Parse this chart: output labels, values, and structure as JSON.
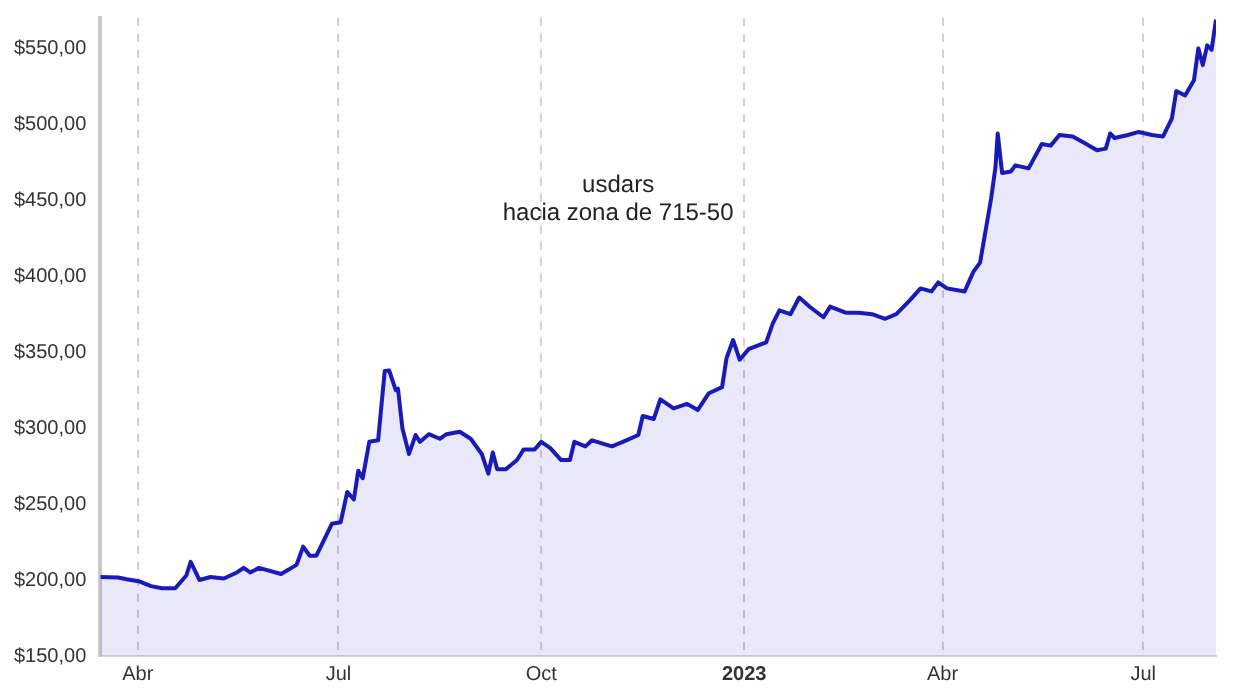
{
  "chart_data": {
    "type": "area",
    "annotations": [
      "usdars",
      "hacia zona de 715-50"
    ],
    "x": [
      "2022-03-15",
      "2022-03-23",
      "2022-03-27",
      "2022-04-02",
      "2022-04-07",
      "2022-04-12",
      "2022-04-18",
      "2022-04-23",
      "2022-04-25",
      "2022-04-29",
      "2022-05-04",
      "2022-05-10",
      "2022-05-16",
      "2022-05-19",
      "2022-05-22",
      "2022-05-26",
      "2022-06-05",
      "2022-06-12",
      "2022-06-15",
      "2022-06-18",
      "2022-06-21",
      "2022-06-24",
      "2022-06-28",
      "2022-07-02",
      "2022-07-05",
      "2022-07-08",
      "2022-07-10",
      "2022-07-12",
      "2022-07-15",
      "2022-07-19",
      "2022-07-22",
      "2022-07-24",
      "2022-07-27",
      "2022-07-28",
      "2022-07-30",
      "2022-08-02",
      "2022-08-05",
      "2022-08-07",
      "2022-08-11",
      "2022-08-16",
      "2022-08-19",
      "2022-08-25",
      "2022-08-30",
      "2022-09-04",
      "2022-09-07",
      "2022-09-09",
      "2022-09-11",
      "2022-09-15",
      "2022-09-20",
      "2022-09-23",
      "2022-09-28",
      "2022-10-01",
      "2022-10-05",
      "2022-10-10",
      "2022-10-14",
      "2022-10-16",
      "2022-10-21",
      "2022-10-24",
      "2022-11-02",
      "2022-11-07",
      "2022-11-14",
      "2022-11-16",
      "2022-11-21",
      "2022-11-24",
      "2022-11-30",
      "2022-12-06",
      "2022-12-11",
      "2022-12-16",
      "2022-12-22",
      "2022-12-24",
      "2022-12-27",
      "2022-12-30",
      "2023-01-03",
      "2023-01-11",
      "2023-01-14",
      "2023-01-17",
      "2023-01-22",
      "2023-01-26",
      "2023-01-31",
      "2023-02-06",
      "2023-02-09",
      "2023-02-16",
      "2023-02-22",
      "2023-02-28",
      "2023-03-06",
      "2023-03-11",
      "2023-03-17",
      "2023-03-22",
      "2023-03-27",
      "2023-03-30",
      "2023-04-03",
      "2023-04-11",
      "2023-04-15",
      "2023-04-18",
      "2023-04-23",
      "2023-04-25",
      "2023-04-26",
      "2023-04-28",
      "2023-05-02",
      "2023-05-04",
      "2023-05-10",
      "2023-05-16",
      "2023-05-20",
      "2023-05-24",
      "2023-05-30",
      "2023-06-04",
      "2023-06-10",
      "2023-06-14",
      "2023-06-16",
      "2023-06-18",
      "2023-06-24",
      "2023-06-29",
      "2023-07-05",
      "2023-07-10",
      "2023-07-14",
      "2023-07-16",
      "2023-07-20",
      "2023-07-24",
      "2023-07-26",
      "2023-07-28",
      "2023-07-30",
      "2023-08-01",
      "2023-08-03"
    ],
    "series": [
      {
        "color": "#1a1ab8",
        "values": [
          202,
          201.7,
          200.5,
          199,
          196,
          194.6,
          194.6,
          203,
          212,
          200,
          202,
          201,
          205,
          208,
          205,
          208,
          204,
          210,
          222,
          216,
          216,
          225,
          237,
          238,
          258,
          253,
          272,
          267,
          291,
          292,
          337.6,
          338,
          325,
          326,
          300,
          283,
          295.5,
          291,
          296,
          293,
          296,
          297.6,
          293,
          283,
          270,
          284,
          273,
          273,
          279,
          286,
          286,
          291,
          287,
          279,
          279,
          291,
          288,
          292,
          288,
          291,
          295.5,
          308,
          306,
          319,
          313,
          316,
          312,
          323,
          327,
          346,
          358,
          345,
          352,
          356.5,
          369,
          377.5,
          375,
          386,
          379.6,
          373,
          380,
          376,
          376,
          375,
          372,
          375,
          384,
          392,
          390,
          396,
          392,
          390,
          403,
          409,
          451,
          472,
          494,
          468,
          469,
          473,
          471,
          487,
          486,
          493,
          492,
          488,
          483,
          484,
          494,
          491,
          493,
          495,
          493,
          492,
          504,
          522,
          519,
          529,
          550,
          539,
          552,
          549,
          569
        ]
      }
    ],
    "xlim": [
      "2022-03-15",
      "2023-08-03"
    ],
    "xticks": [
      {
        "value": "2022-04-01",
        "label": "Abr"
      },
      {
        "value": "2022-07-01",
        "label": "Jul"
      },
      {
        "value": "2022-10-01",
        "label": "Oct"
      },
      {
        "value": "2023-01-01",
        "label": "2023"
      },
      {
        "value": "2023-04-01",
        "label": "Abr"
      },
      {
        "value": "2023-07-01",
        "label": "Jul"
      }
    ],
    "ylim": [
      150,
      570
    ],
    "yticks": [
      {
        "value": 150,
        "label": "$150,00"
      },
      {
        "value": 200,
        "label": "$200,00"
      },
      {
        "value": 250,
        "label": "$250,00"
      },
      {
        "value": 300,
        "label": "$300,00"
      },
      {
        "value": 350,
        "label": "$350,00"
      },
      {
        "value": 400,
        "label": "$400,00"
      },
      {
        "value": 450,
        "label": "$450,00"
      },
      {
        "value": 500,
        "label": "$500,00"
      },
      {
        "value": 550,
        "label": "$550,00"
      }
    ],
    "grid": "x",
    "legend": false,
    "marker": "none",
    "line_style": "solid"
  }
}
